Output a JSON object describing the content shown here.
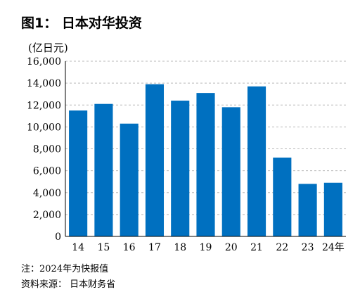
{
  "chart_data": {
    "type": "bar",
    "title": "图1： 日本对华投资",
    "ylabel": "(亿日元)",
    "categories": [
      "14",
      "15",
      "16",
      "17",
      "18",
      "19",
      "20",
      "21",
      "22",
      "23",
      "24年"
    ],
    "values": [
      11500,
      12100,
      10300,
      13900,
      12400,
      13100,
      11800,
      13700,
      7200,
      4800,
      4900
    ],
    "ylim": [
      0,
      16000
    ],
    "yticks": [
      0,
      2000,
      4000,
      6000,
      8000,
      10000,
      12000,
      14000,
      16000
    ],
    "ytick_labels": [
      "0",
      "2,000",
      "4,000",
      "6,000",
      "8,000",
      "10,000",
      "12,000",
      "14,000",
      "16,000"
    ],
    "grid": true,
    "bar_color": "#0070c0"
  },
  "footnotes": {
    "note": "注：2024年为快报值",
    "source": "资料来源： 日本财务省"
  }
}
